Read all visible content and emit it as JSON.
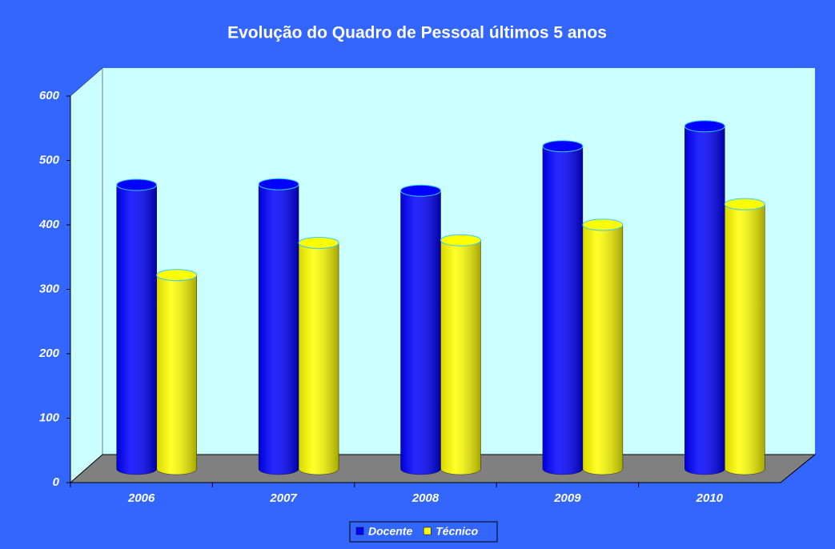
{
  "chart_data": {
    "type": "bar",
    "title": "Evolução do Quadro de Pessoal últimos 5 anos",
    "categories": [
      "2006",
      "2007",
      "2008",
      "2009",
      "2010"
    ],
    "series": [
      {
        "name": "Docente",
        "color": "#0000ff",
        "values": [
          441,
          442,
          432,
          501,
          532
        ]
      },
      {
        "name": "Técnico",
        "color": "#ffff00",
        "values": [
          301,
          351,
          355,
          379,
          411
        ]
      }
    ],
    "ylim": [
      0,
      600
    ],
    "yticks": [
      0,
      100,
      200,
      300,
      400,
      500,
      600
    ],
    "grid": false,
    "legend": "bottom"
  }
}
